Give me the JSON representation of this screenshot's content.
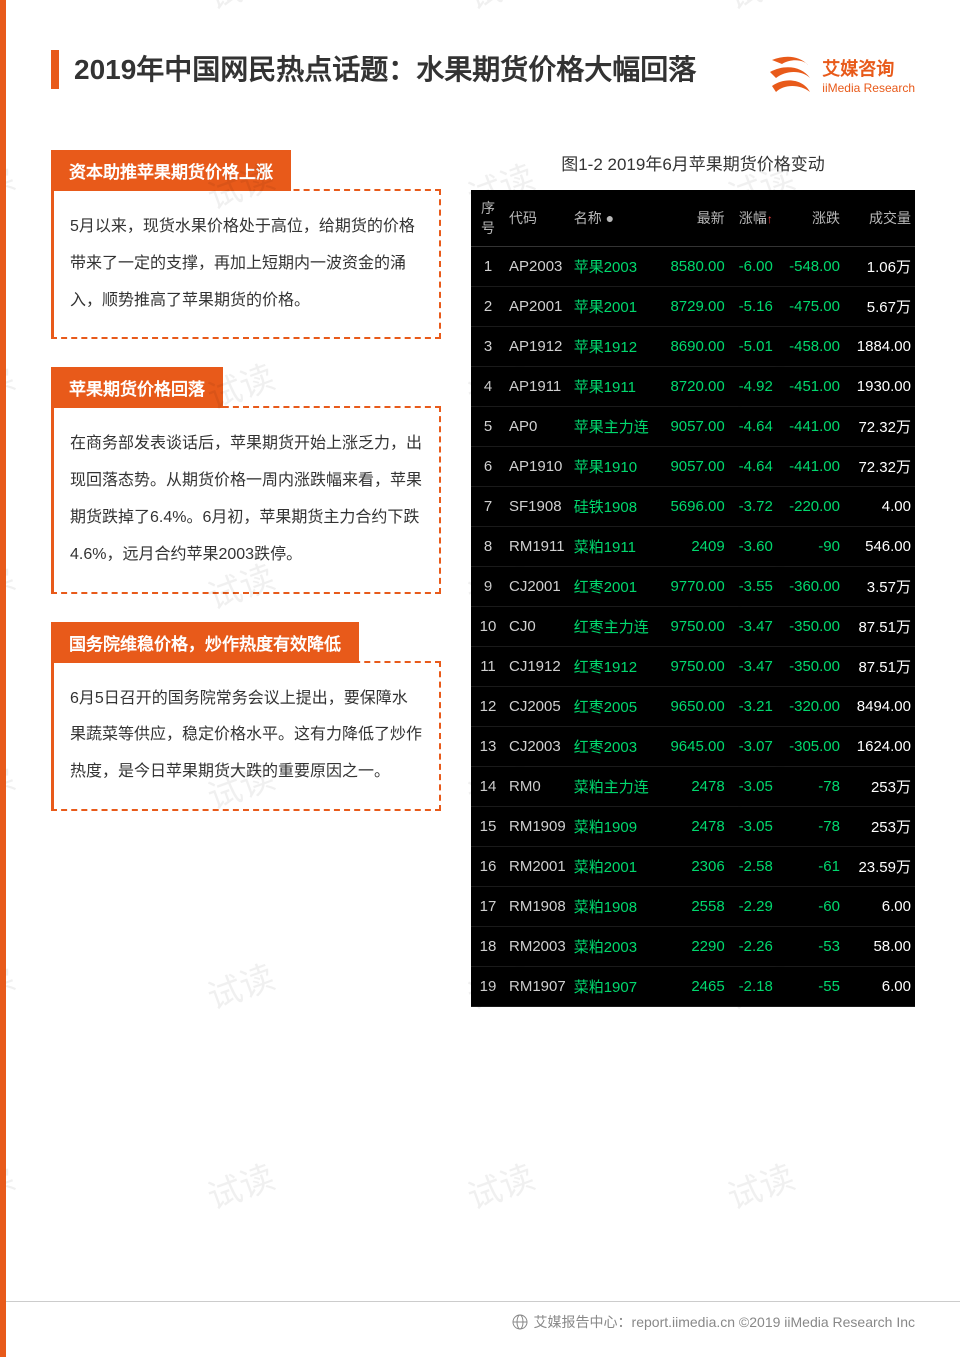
{
  "header": {
    "title": "2019年中国网民热点话题：水果期货价格大幅回落",
    "logo_cn": "艾媒咨询",
    "logo_en": "iiMedia Research",
    "logo_color": "#e85a1a"
  },
  "watermark": "试读",
  "accent_color": "#e85a1a",
  "sections": [
    {
      "heading": "资本助推苹果期货价格上涨",
      "body": "5月以来，现货水果价格处于高位，给期货的价格带来了一定的支撑，再加上短期内一波资金的涌入，顺势推高了苹果期货的价格。"
    },
    {
      "heading": "苹果期货价格回落",
      "body": "在商务部发表谈话后，苹果期货开始上涨乏力，出现回落态势。从期货价格一周内涨跌幅来看，苹果期货跌掉了6.4%。6月初，苹果期货主力合约下跌4.6%，远月合约苹果2003跌停。"
    },
    {
      "heading": "国务院维稳价格，炒作热度有效降低",
      "body": "6月5日召开的国务院常务会议上提出，要保障水果蔬菜等供应，稳定价格水平。这有力降低了炒作热度，是今日苹果期货大跌的重要原因之一。"
    }
  ],
  "table": {
    "caption": "图1-2 2019年6月苹果期货价格变动",
    "background_color": "#000000",
    "text_color": "#d0d0d0",
    "down_color": "#00d96e",
    "vol_color": "#ffffff",
    "columns": [
      "序号",
      "代码",
      "名称",
      "最新",
      "涨幅↑",
      "涨跌",
      "成交量"
    ],
    "rows": [
      {
        "idx": "1",
        "code": "AP2003",
        "name": "苹果2003",
        "last": "8580.00",
        "chg": "-6.00",
        "diff": "-548.00",
        "vol": "1.06万"
      },
      {
        "idx": "2",
        "code": "AP2001",
        "name": "苹果2001",
        "last": "8729.00",
        "chg": "-5.16",
        "diff": "-475.00",
        "vol": "5.67万"
      },
      {
        "idx": "3",
        "code": "AP1912",
        "name": "苹果1912",
        "last": "8690.00",
        "chg": "-5.01",
        "diff": "-458.00",
        "vol": "1884.00"
      },
      {
        "idx": "4",
        "code": "AP1911",
        "name": "苹果1911",
        "last": "8720.00",
        "chg": "-4.92",
        "diff": "-451.00",
        "vol": "1930.00"
      },
      {
        "idx": "5",
        "code": "AP0",
        "name": "苹果主力连",
        "last": "9057.00",
        "chg": "-4.64",
        "diff": "-441.00",
        "vol": "72.32万"
      },
      {
        "idx": "6",
        "code": "AP1910",
        "name": "苹果1910",
        "last": "9057.00",
        "chg": "-4.64",
        "diff": "-441.00",
        "vol": "72.32万"
      },
      {
        "idx": "7",
        "code": "SF1908",
        "name": "硅铁1908",
        "last": "5696.00",
        "chg": "-3.72",
        "diff": "-220.00",
        "vol": "4.00"
      },
      {
        "idx": "8",
        "code": "RM1911",
        "name": "菜粕1911",
        "last": "2409",
        "chg": "-3.60",
        "diff": "-90",
        "vol": "546.00"
      },
      {
        "idx": "9",
        "code": "CJ2001",
        "name": "红枣2001",
        "last": "9770.00",
        "chg": "-3.55",
        "diff": "-360.00",
        "vol": "3.57万"
      },
      {
        "idx": "10",
        "code": "CJ0",
        "name": "红枣主力连",
        "last": "9750.00",
        "chg": "-3.47",
        "diff": "-350.00",
        "vol": "87.51万"
      },
      {
        "idx": "11",
        "code": "CJ1912",
        "name": "红枣1912",
        "last": "9750.00",
        "chg": "-3.47",
        "diff": "-350.00",
        "vol": "87.51万"
      },
      {
        "idx": "12",
        "code": "CJ2005",
        "name": "红枣2005",
        "last": "9650.00",
        "chg": "-3.21",
        "diff": "-320.00",
        "vol": "8494.00"
      },
      {
        "idx": "13",
        "code": "CJ2003",
        "name": "红枣2003",
        "last": "9645.00",
        "chg": "-3.07",
        "diff": "-305.00",
        "vol": "1624.00"
      },
      {
        "idx": "14",
        "code": "RM0",
        "name": "菜粕主力连",
        "last": "2478",
        "chg": "-3.05",
        "diff": "-78",
        "vol": "253万"
      },
      {
        "idx": "15",
        "code": "RM1909",
        "name": "菜粕1909",
        "last": "2478",
        "chg": "-3.05",
        "diff": "-78",
        "vol": "253万"
      },
      {
        "idx": "16",
        "code": "RM2001",
        "name": "菜粕2001",
        "last": "2306",
        "chg": "-2.58",
        "diff": "-61",
        "vol": "23.59万"
      },
      {
        "idx": "17",
        "code": "RM1908",
        "name": "菜粕1908",
        "last": "2558",
        "chg": "-2.29",
        "diff": "-60",
        "vol": "6.00"
      },
      {
        "idx": "18",
        "code": "RM2003",
        "name": "菜粕2003",
        "last": "2290",
        "chg": "-2.26",
        "diff": "-53",
        "vol": "58.00"
      },
      {
        "idx": "19",
        "code": "RM1907",
        "name": "菜粕1907",
        "last": "2465",
        "chg": "-2.18",
        "diff": "-55",
        "vol": "6.00"
      }
    ]
  },
  "footer": {
    "text": "艾媒报告中心：report.iimedia.cn   ©2019  iiMedia Research Inc"
  }
}
